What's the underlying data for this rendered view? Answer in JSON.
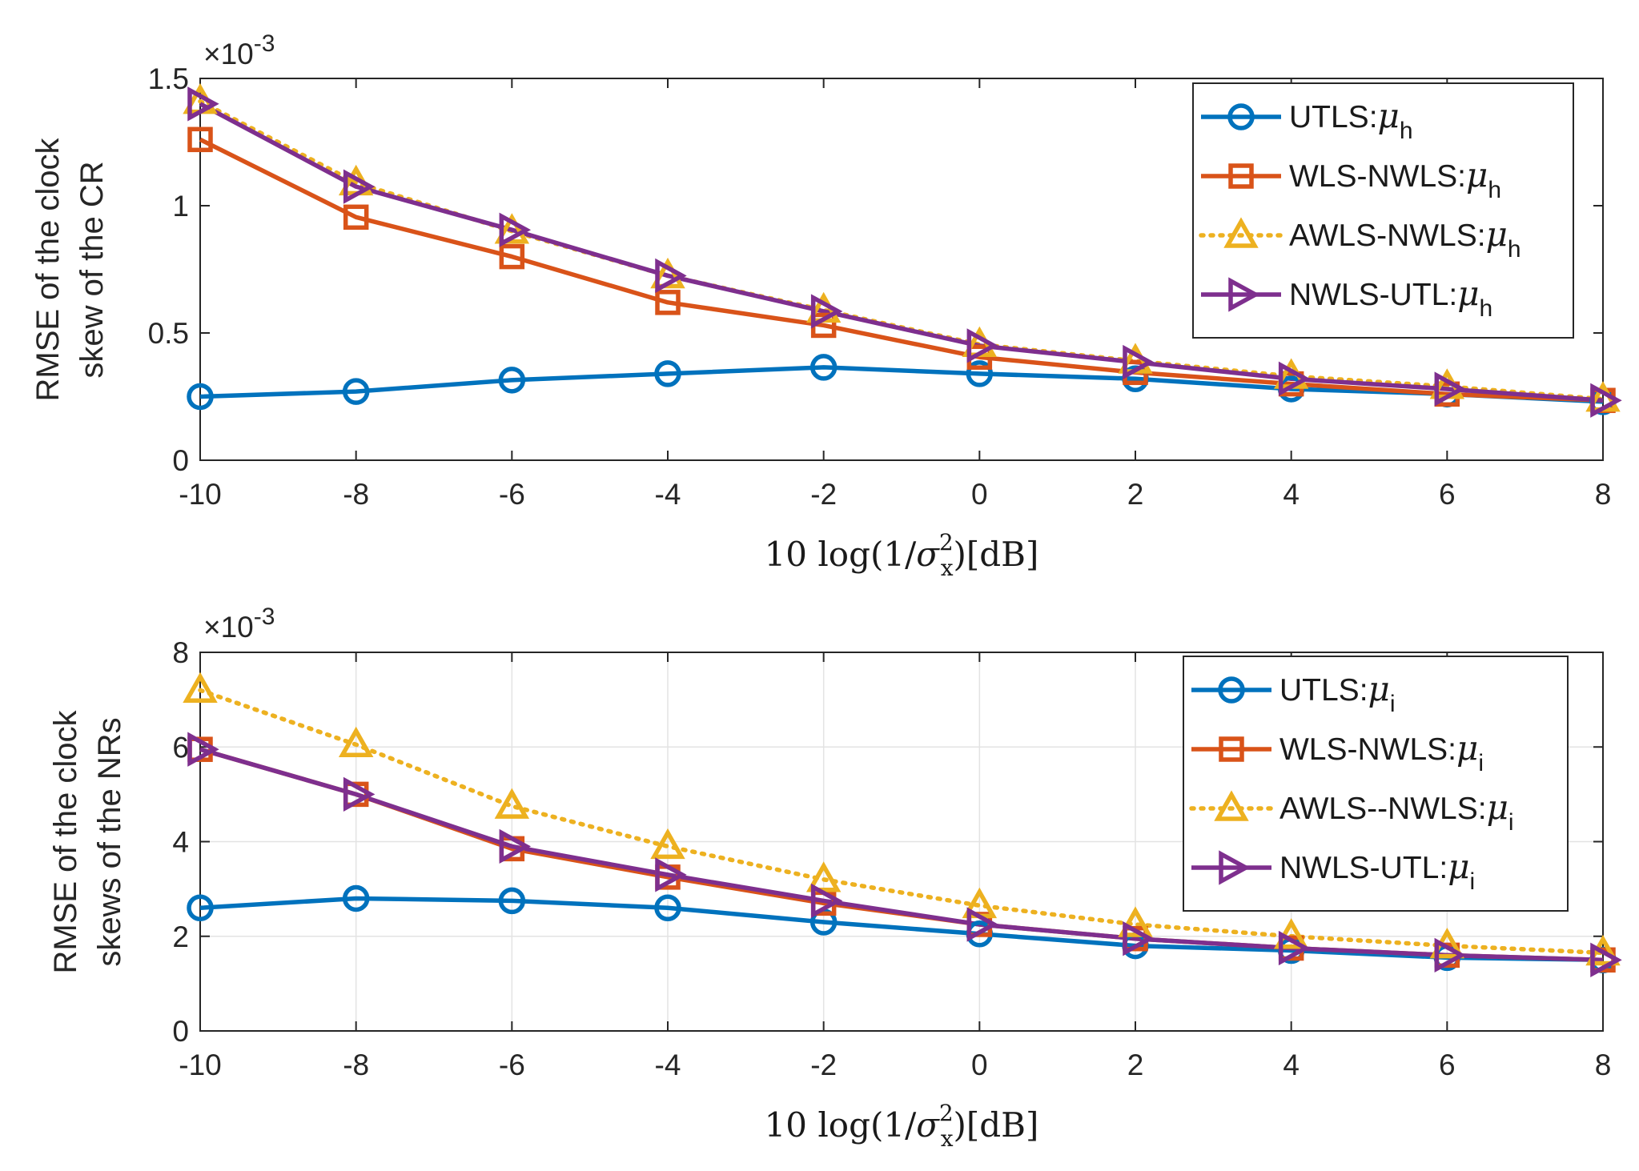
{
  "colors": {
    "UTLS": "#0072BD",
    "WLS_NWLS": "#D95319",
    "AWLS_NWLS": "#EDB120",
    "NWLS_UTL": "#7E2F8E",
    "grid": "#e3e3e3",
    "axis": "#262626"
  },
  "chart_data": [
    {
      "type": "line",
      "title": "",
      "xlabel": "10 log(1/σ²ₓ)[dB]",
      "xlabel_parts": {
        "prefix": "10 log(1/",
        "sigma": "σ",
        "sup": "2",
        "sub": "x",
        "suffix": ")[dB]"
      },
      "ylabel_lines": [
        "RMSE of the clock",
        "skew of the CR"
      ],
      "y_exponent": {
        "base": "×10",
        "power": "-3"
      },
      "x": [
        -10,
        -8,
        -6,
        -4,
        -2,
        0,
        2,
        4,
        6,
        8
      ],
      "x_tick_labels": [
        "-10",
        "-8",
        "-6",
        "-4",
        "-2",
        "0",
        "2",
        "4",
        "6",
        "8"
      ],
      "xlim": [
        -10,
        8
      ],
      "ylim": [
        0,
        1.5
      ],
      "y_ticks": [
        0,
        0.5,
        1,
        1.5
      ],
      "y_tick_labels": [
        "0",
        "0.5",
        "1",
        "1.5"
      ],
      "grid": false,
      "legend_position": "top-right",
      "series": [
        {
          "key": "UTLS",
          "name": "UTLS:",
          "sub": "h",
          "marker": "circle",
          "dash": "solid",
          "values": [
            0.25,
            0.27,
            0.315,
            0.34,
            0.365,
            0.34,
            0.32,
            0.28,
            0.26,
            0.23
          ]
        },
        {
          "key": "WLS_NWLS",
          "name": "WLS-NWLS:",
          "sub": "h",
          "marker": "square",
          "dash": "solid",
          "values": [
            1.26,
            0.955,
            0.8,
            0.62,
            0.53,
            0.405,
            0.345,
            0.3,
            0.26,
            0.235
          ]
        },
        {
          "key": "AWLS_NWLS",
          "name": "AWLS-NWLS:",
          "sub": "h",
          "marker": "triangle-up",
          "dash": "dotted",
          "values": [
            1.41,
            1.09,
            0.9,
            0.725,
            0.59,
            0.455,
            0.39,
            0.33,
            0.29,
            0.24
          ]
        },
        {
          "key": "NWLS_UTL",
          "name": "NWLS-UTL:",
          "sub": "h",
          "marker": "triangle-right",
          "dash": "solid",
          "values": [
            1.4,
            1.075,
            0.905,
            0.725,
            0.585,
            0.45,
            0.385,
            0.32,
            0.28,
            0.235
          ]
        }
      ]
    },
    {
      "type": "line",
      "title": "",
      "xlabel": "10 log(1/σ²ₓ)[dB]",
      "xlabel_parts": {
        "prefix": "10 log(1/",
        "sigma": "σ",
        "sup": "2",
        "sub": "x",
        "suffix": ")[dB]"
      },
      "ylabel_lines": [
        "RMSE of the clock",
        "skews of the NRs"
      ],
      "y_exponent": {
        "base": "×10",
        "power": "-3"
      },
      "x": [
        -10,
        -8,
        -6,
        -4,
        -2,
        0,
        2,
        4,
        6,
        8
      ],
      "x_tick_labels": [
        "-10",
        "-8",
        "-6",
        "-4",
        "-2",
        "0",
        "2",
        "4",
        "6",
        "8"
      ],
      "xlim": [
        -10,
        8
      ],
      "ylim": [
        0,
        8
      ],
      "y_ticks": [
        0,
        2,
        4,
        6,
        8
      ],
      "y_tick_labels": [
        "0",
        "2",
        "4",
        "6",
        "8"
      ],
      "grid": true,
      "legend_position": "top-right",
      "series": [
        {
          "key": "UTLS",
          "name": "UTLS:",
          "sub": "i",
          "marker": "circle",
          "dash": "solid",
          "values": [
            2.6,
            2.8,
            2.75,
            2.6,
            2.3,
            2.05,
            1.8,
            1.7,
            1.55,
            1.5
          ]
        },
        {
          "key": "WLS_NWLS",
          "name": "WLS-NWLS:",
          "sub": "i",
          "marker": "square",
          "dash": "solid",
          "values": [
            5.95,
            5.0,
            3.85,
            3.25,
            2.7,
            2.25,
            1.95,
            1.75,
            1.6,
            1.5
          ]
        },
        {
          "key": "AWLS_NWLS",
          "name": "AWLS--NWLS:",
          "sub": "i",
          "marker": "triangle-up",
          "dash": "dotted",
          "values": [
            7.2,
            6.05,
            4.75,
            3.9,
            3.2,
            2.65,
            2.25,
            2.0,
            1.8,
            1.65
          ]
        },
        {
          "key": "NWLS_UTL",
          "name": "NWLS-UTL:",
          "sub": "i",
          "marker": "triangle-right",
          "dash": "solid",
          "values": [
            5.95,
            5.0,
            3.9,
            3.3,
            2.75,
            2.25,
            1.95,
            1.75,
            1.6,
            1.5
          ]
        }
      ]
    }
  ]
}
